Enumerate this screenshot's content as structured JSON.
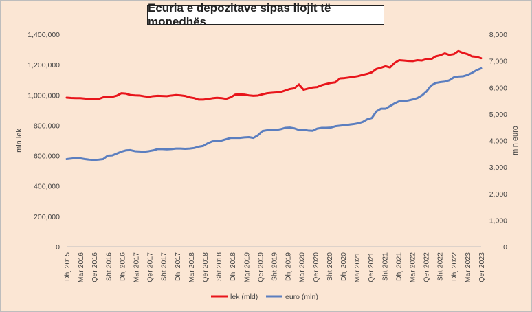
{
  "chart_data": {
    "type": "line",
    "title": "Ecuria e depozitave sipas llojit të monedhës",
    "ylabel_left": "mln lek",
    "ylabel_right": "mln euro",
    "ylim_left": [
      0,
      1400000
    ],
    "ylim_right": [
      0,
      8000
    ],
    "yticks_left": [
      "0",
      "200,000",
      "400,000",
      "600,000",
      "800,000",
      "1,000,000",
      "1,200,000",
      "1,400,000"
    ],
    "yticks_right": [
      "0",
      "1,000",
      "2,000",
      "3,000",
      "4,000",
      "5,000",
      "6,000",
      "7,000",
      "8,000"
    ],
    "xtick_labels": [
      "Dhj 2015",
      "Mar 2016",
      "Qer 2016",
      "Sht 2016",
      "Dhj 2016",
      "Mar 2017",
      "Qer 2017",
      "Sht 2017",
      "Dhj 2017",
      "Mar 2018",
      "Qer 2018",
      "Sht 2018",
      "Dhj 2018",
      "Mar 2019",
      "Qer 2019",
      "Sht 2019",
      "Dhj 2019",
      "Mar 2020",
      "Qer 2020",
      "Sht 2020",
      "Dhj 2020",
      "Mar 2021",
      "Qer 2021",
      "Sht 2021",
      "Dhj 2021",
      "Mar 2022",
      "Qer 2022",
      "Sht 2022",
      "Dhj 2022",
      "Mar 2023",
      "Qer 2023"
    ],
    "series": [
      {
        "name": "lek (mld)",
        "axis": "left",
        "color": "#e8151b",
        "values": [
          983000,
          981000,
          980000,
          980000,
          977000,
          973000,
          972000,
          974000,
          985000,
          990000,
          988000,
          996000,
          1012000,
          1010000,
          1000000,
          998000,
          997000,
          992000,
          988000,
          993000,
          995000,
          994000,
          993000,
          997000,
          1000000,
          998000,
          994000,
          985000,
          980000,
          970000,
          970000,
          974000,
          979000,
          982000,
          980000,
          975000,
          985000,
          1003000,
          1004000,
          1003000,
          998000,
          995000,
          997000,
          1005000,
          1012000,
          1015000,
          1017000,
          1020000,
          1030000,
          1040000,
          1045000,
          1070000,
          1035000,
          1043000,
          1050000,
          1053000,
          1065000,
          1073000,
          1080000,
          1084000,
          1110000,
          1112000,
          1116000,
          1120000,
          1125000,
          1133000,
          1140000,
          1150000,
          1172000,
          1180000,
          1190000,
          1182000,
          1212000,
          1230000,
          1228000,
          1225000,
          1224000,
          1230000,
          1228000,
          1237000,
          1236000,
          1255000,
          1262000,
          1275000,
          1265000,
          1270000,
          1290000,
          1278000,
          1270000,
          1255000,
          1252000,
          1243000
        ]
      },
      {
        "name": "euro (mln)",
        "axis": "right",
        "color": "#5b7ebf",
        "values": [
          3300,
          3320,
          3340,
          3330,
          3300,
          3280,
          3270,
          3280,
          3300,
          3430,
          3440,
          3510,
          3580,
          3630,
          3640,
          3600,
          3590,
          3580,
          3600,
          3630,
          3680,
          3680,
          3670,
          3680,
          3700,
          3700,
          3690,
          3700,
          3720,
          3770,
          3800,
          3900,
          3970,
          3980,
          4000,
          4050,
          4100,
          4100,
          4100,
          4120,
          4130,
          4100,
          4200,
          4360,
          4390,
          4400,
          4400,
          4430,
          4480,
          4490,
          4460,
          4400,
          4400,
          4380,
          4370,
          4450,
          4480,
          4480,
          4490,
          4540,
          4560,
          4580,
          4600,
          4620,
          4650,
          4700,
          4800,
          4850,
          5100,
          5200,
          5200,
          5300,
          5400,
          5480,
          5480,
          5510,
          5550,
          5600,
          5700,
          5850,
          6070,
          6170,
          6200,
          6220,
          6270,
          6380,
          6410,
          6420,
          6470,
          6550,
          6650,
          6720
        ]
      }
    ],
    "legend_position": "bottom-center",
    "grid": false
  }
}
